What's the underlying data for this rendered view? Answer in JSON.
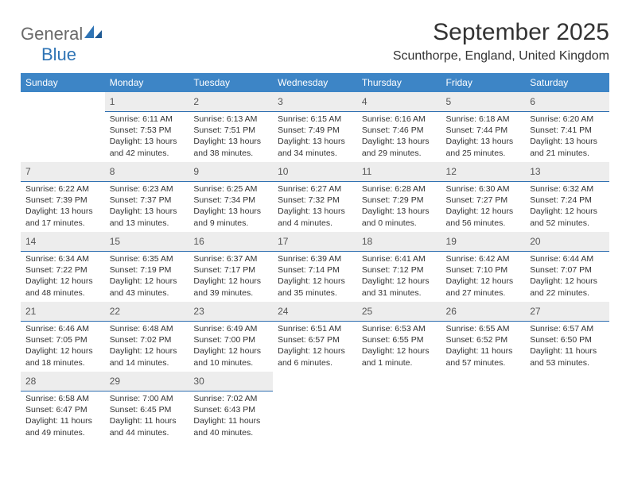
{
  "brand": {
    "text1": "General",
    "text2": "Blue",
    "color1": "#6a6a6a",
    "color2": "#2f74b5"
  },
  "title": "September 2025",
  "location": "Scunthorpe, England, United Kingdom",
  "header_bg": "#3d85c6",
  "header_fg": "#ffffff",
  "daynum_bg": "#ededed",
  "daynum_border": "#2f6fb0",
  "text_color": "#333333",
  "daynum_color": "#555555",
  "weekdays": [
    "Sunday",
    "Monday",
    "Tuesday",
    "Wednesday",
    "Thursday",
    "Friday",
    "Saturday"
  ],
  "weeks": [
    [
      null,
      {
        "n": "1",
        "sunrise": "6:11 AM",
        "sunset": "7:53 PM",
        "daylight": "13 hours and 42 minutes."
      },
      {
        "n": "2",
        "sunrise": "6:13 AM",
        "sunset": "7:51 PM",
        "daylight": "13 hours and 38 minutes."
      },
      {
        "n": "3",
        "sunrise": "6:15 AM",
        "sunset": "7:49 PM",
        "daylight": "13 hours and 34 minutes."
      },
      {
        "n": "4",
        "sunrise": "6:16 AM",
        "sunset": "7:46 PM",
        "daylight": "13 hours and 29 minutes."
      },
      {
        "n": "5",
        "sunrise": "6:18 AM",
        "sunset": "7:44 PM",
        "daylight": "13 hours and 25 minutes."
      },
      {
        "n": "6",
        "sunrise": "6:20 AM",
        "sunset": "7:41 PM",
        "daylight": "13 hours and 21 minutes."
      }
    ],
    [
      {
        "n": "7",
        "sunrise": "6:22 AM",
        "sunset": "7:39 PM",
        "daylight": "13 hours and 17 minutes."
      },
      {
        "n": "8",
        "sunrise": "6:23 AM",
        "sunset": "7:37 PM",
        "daylight": "13 hours and 13 minutes."
      },
      {
        "n": "9",
        "sunrise": "6:25 AM",
        "sunset": "7:34 PM",
        "daylight": "13 hours and 9 minutes."
      },
      {
        "n": "10",
        "sunrise": "6:27 AM",
        "sunset": "7:32 PM",
        "daylight": "13 hours and 4 minutes."
      },
      {
        "n": "11",
        "sunrise": "6:28 AM",
        "sunset": "7:29 PM",
        "daylight": "13 hours and 0 minutes."
      },
      {
        "n": "12",
        "sunrise": "6:30 AM",
        "sunset": "7:27 PM",
        "daylight": "12 hours and 56 minutes."
      },
      {
        "n": "13",
        "sunrise": "6:32 AM",
        "sunset": "7:24 PM",
        "daylight": "12 hours and 52 minutes."
      }
    ],
    [
      {
        "n": "14",
        "sunrise": "6:34 AM",
        "sunset": "7:22 PM",
        "daylight": "12 hours and 48 minutes."
      },
      {
        "n": "15",
        "sunrise": "6:35 AM",
        "sunset": "7:19 PM",
        "daylight": "12 hours and 43 minutes."
      },
      {
        "n": "16",
        "sunrise": "6:37 AM",
        "sunset": "7:17 PM",
        "daylight": "12 hours and 39 minutes."
      },
      {
        "n": "17",
        "sunrise": "6:39 AM",
        "sunset": "7:14 PM",
        "daylight": "12 hours and 35 minutes."
      },
      {
        "n": "18",
        "sunrise": "6:41 AM",
        "sunset": "7:12 PM",
        "daylight": "12 hours and 31 minutes."
      },
      {
        "n": "19",
        "sunrise": "6:42 AM",
        "sunset": "7:10 PM",
        "daylight": "12 hours and 27 minutes."
      },
      {
        "n": "20",
        "sunrise": "6:44 AM",
        "sunset": "7:07 PM",
        "daylight": "12 hours and 22 minutes."
      }
    ],
    [
      {
        "n": "21",
        "sunrise": "6:46 AM",
        "sunset": "7:05 PM",
        "daylight": "12 hours and 18 minutes."
      },
      {
        "n": "22",
        "sunrise": "6:48 AM",
        "sunset": "7:02 PM",
        "daylight": "12 hours and 14 minutes."
      },
      {
        "n": "23",
        "sunrise": "6:49 AM",
        "sunset": "7:00 PM",
        "daylight": "12 hours and 10 minutes."
      },
      {
        "n": "24",
        "sunrise": "6:51 AM",
        "sunset": "6:57 PM",
        "daylight": "12 hours and 6 minutes."
      },
      {
        "n": "25",
        "sunrise": "6:53 AM",
        "sunset": "6:55 PM",
        "daylight": "12 hours and 1 minute."
      },
      {
        "n": "26",
        "sunrise": "6:55 AM",
        "sunset": "6:52 PM",
        "daylight": "11 hours and 57 minutes."
      },
      {
        "n": "27",
        "sunrise": "6:57 AM",
        "sunset": "6:50 PM",
        "daylight": "11 hours and 53 minutes."
      }
    ],
    [
      {
        "n": "28",
        "sunrise": "6:58 AM",
        "sunset": "6:47 PM",
        "daylight": "11 hours and 49 minutes."
      },
      {
        "n": "29",
        "sunrise": "7:00 AM",
        "sunset": "6:45 PM",
        "daylight": "11 hours and 44 minutes."
      },
      {
        "n": "30",
        "sunrise": "7:02 AM",
        "sunset": "6:43 PM",
        "daylight": "11 hours and 40 minutes."
      },
      null,
      null,
      null,
      null
    ]
  ],
  "labels": {
    "sunrise": "Sunrise: ",
    "sunset": "Sunset: ",
    "daylight": "Daylight: "
  }
}
